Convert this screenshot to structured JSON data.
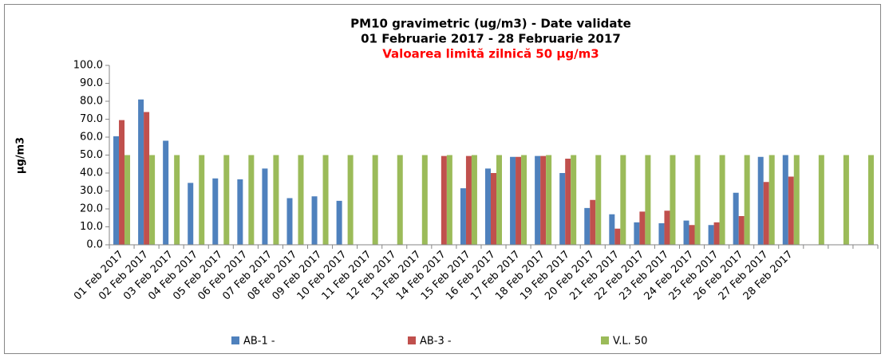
{
  "chart_data": {
    "type": "bar",
    "title": [
      "PM10 gravimetric (ug/m3) - Date validate",
      "01 Februarie 2017 - 28 Februarie 2017",
      "Valoarea limită zilnică 50 µg/m3"
    ],
    "y_label": "µg/m3",
    "categories": [
      "01 Feb 2017",
      "02 Feb 2017",
      "03 Feb 2017",
      "04 Feb 2017",
      "05 Feb 2017",
      "06 Feb 2017",
      "07 Feb 2017",
      "08 Feb 2017",
      "09 Feb 2017",
      "10 Feb 2017",
      "11 Feb 2017",
      "12 Feb 2017",
      "13 Feb 2017",
      "14 Feb 2017",
      "15 Feb 2017",
      "16 Feb 2017",
      "17 Feb 2017",
      "18 Feb 2017",
      "19 Feb 2017",
      "20 Feb 2017",
      "21 Feb 2017",
      "22 Feb 2017",
      "23 Feb 2017",
      "24 Feb 2017",
      "25 Feb 2017",
      "26 Feb 2017",
      "27 Feb 2017",
      "28 Feb 2017",
      null,
      null,
      null
    ],
    "series": [
      {
        "name": "AB-1 -",
        "color": "#4f81bd",
        "values": [
          60.5,
          81,
          58,
          34.5,
          37,
          36.5,
          42.5,
          26,
          27,
          24.5,
          null,
          null,
          null,
          null,
          31.5,
          42.5,
          49,
          49.5,
          40,
          20.5,
          17,
          12.5,
          12,
          13.5,
          11,
          29,
          49,
          50,
          null,
          null,
          null
        ]
      },
      {
        "name": "AB-3 -",
        "color": "#c0504d",
        "values": [
          69.5,
          74,
          null,
          null,
          null,
          null,
          null,
          null,
          null,
          null,
          null,
          null,
          null,
          49.5,
          49.5,
          40,
          49,
          49.5,
          48,
          25,
          9,
          18.5,
          19,
          11,
          12.5,
          16,
          35,
          38,
          null,
          null,
          null
        ]
      },
      {
        "name": "V.L. 50",
        "color": "#9bbb59",
        "values": [
          50,
          50,
          50,
          50,
          50,
          50,
          50,
          50,
          50,
          50,
          50,
          50,
          50,
          50,
          50,
          50,
          50,
          50,
          50,
          50,
          50,
          50,
          50,
          50,
          50,
          50,
          50,
          50,
          50,
          50,
          50
        ]
      }
    ],
    "ylim": [
      0,
      100
    ],
    "yticks": [
      {
        "value": 0,
        "label": "0.0"
      },
      {
        "value": 10,
        "label": "10.0"
      },
      {
        "value": 20,
        "label": "20.0"
      },
      {
        "value": 30,
        "label": "30.0"
      },
      {
        "value": 40,
        "label": "40.0"
      },
      {
        "value": 50,
        "label": "50.0"
      },
      {
        "value": 60,
        "label": "60.0"
      },
      {
        "value": 70,
        "label": "70.0"
      },
      {
        "value": 80,
        "label": "80.0"
      },
      {
        "value": 90,
        "label": "90.0"
      },
      {
        "value": 100,
        "label": "100.0"
      }
    ],
    "legend": "bottom"
  }
}
